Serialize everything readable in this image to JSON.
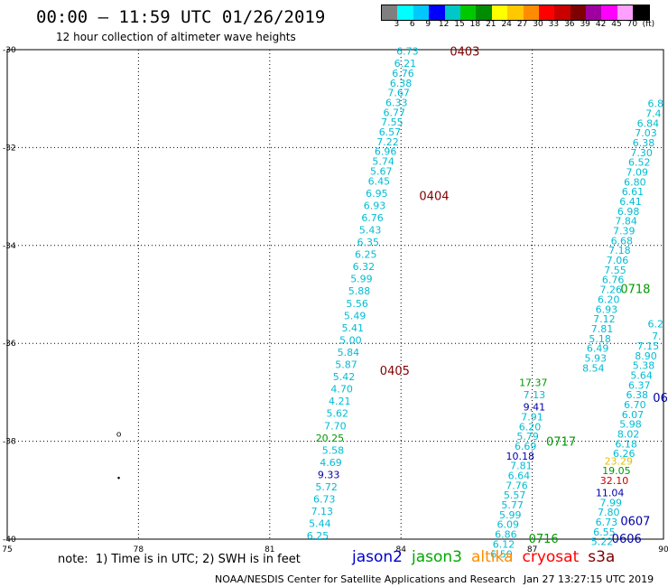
{
  "header": {
    "title": "00:00 – 11:59 UTC 01/26/2019",
    "subtitle": "12 hour collection of altimeter wave heights"
  },
  "colorbar": {
    "unit": "(ft)",
    "labels": [
      "3",
      "6",
      "9",
      "12",
      "15",
      "18",
      "21",
      "24",
      "27",
      "30",
      "33",
      "36",
      "39",
      "42",
      "45",
      "70"
    ],
    "colors": [
      "#7f7f7f",
      "#00ffff",
      "#00c8ff",
      "#0000ff",
      "#00c8c8",
      "#00c800",
      "#008c00",
      "#ffff00",
      "#ffc800",
      "#ff8c00",
      "#ff0000",
      "#c80000",
      "#7f0000",
      "#a000a0",
      "#ff00ff",
      "#ffa0ff",
      "#000000"
    ]
  },
  "map": {
    "lon_range": [
      75,
      90
    ],
    "lat_range": [
      -40,
      -30
    ],
    "lon_ticks": [
      "75",
      "78",
      "81",
      "84",
      "87",
      "90"
    ],
    "lat_ticks": [
      "-30",
      "-32",
      "-34",
      "-36",
      "-38",
      "-40"
    ],
    "lat_tick_values": [
      -30,
      -32,
      -34,
      -36,
      -38,
      -40
    ],
    "lon_tick_values": [
      75,
      78,
      81,
      84,
      87,
      90
    ],
    "island_points": [
      {
        "lon": 77.55,
        "lat": -37.85,
        "symbol": "o"
      },
      {
        "lon": 77.55,
        "lat": -38.75,
        "symbol": "•"
      }
    ]
  },
  "chart_data": {
    "type": "scatter",
    "title": "00:00 – 11:59 UTC 01/26/2019",
    "xlabel": "",
    "ylabel": "",
    "xlim": [
      75,
      90
    ],
    "ylim": [
      -40,
      -30
    ],
    "grid": true,
    "series": [
      {
        "name": "cryosat",
        "color": "#00bcd4",
        "points": [
          {
            "lon": 84.4,
            "lat": -30.03,
            "v": "6.73"
          },
          {
            "lon": 84.35,
            "lat": -30.28,
            "v": "6.21"
          },
          {
            "lon": 84.3,
            "lat": -30.48,
            "v": "6.76"
          },
          {
            "lon": 84.25,
            "lat": -30.68,
            "v": "6.38"
          },
          {
            "lon": 84.2,
            "lat": -30.88,
            "v": "7.67"
          },
          {
            "lon": 84.15,
            "lat": -31.08,
            "v": "6.33"
          },
          {
            "lon": 84.1,
            "lat": -31.28,
            "v": "6.77"
          },
          {
            "lon": 84.05,
            "lat": -31.48,
            "v": "7.55"
          },
          {
            "lon": 84.0,
            "lat": -31.68,
            "v": "6.57"
          },
          {
            "lon": 83.95,
            "lat": -31.88,
            "v": "7.22"
          },
          {
            "lon": 83.9,
            "lat": -32.08,
            "v": "6.96"
          },
          {
            "lon": 83.85,
            "lat": -32.28,
            "v": "5.74"
          },
          {
            "lon": 83.8,
            "lat": -32.48,
            "v": "5.67"
          },
          {
            "lon": 83.75,
            "lat": -32.68,
            "v": "6.45"
          },
          {
            "lon": 83.7,
            "lat": -32.93,
            "v": "6.95"
          },
          {
            "lon": 83.65,
            "lat": -33.18,
            "v": "6.93"
          },
          {
            "lon": 83.6,
            "lat": -33.43,
            "v": "6.76"
          },
          {
            "lon": 83.55,
            "lat": -33.68,
            "v": "5.43"
          },
          {
            "lon": 83.5,
            "lat": -33.93,
            "v": "6.35"
          },
          {
            "lon": 83.45,
            "lat": -34.18,
            "v": "6.25"
          },
          {
            "lon": 83.4,
            "lat": -34.43,
            "v": "6.32"
          },
          {
            "lon": 83.35,
            "lat": -34.68,
            "v": "5.99"
          },
          {
            "lon": 83.3,
            "lat": -34.93,
            "v": "5.88"
          },
          {
            "lon": 83.25,
            "lat": -35.18,
            "v": "5.56"
          },
          {
            "lon": 83.2,
            "lat": -35.43,
            "v": "5.49"
          },
          {
            "lon": 83.15,
            "lat": -35.68,
            "v": "5.41"
          },
          {
            "lon": 83.1,
            "lat": -35.93,
            "v": "5.00"
          },
          {
            "lon": 83.05,
            "lat": -36.18,
            "v": "5.84"
          },
          {
            "lon": 83.0,
            "lat": -36.43,
            "v": "5.87"
          },
          {
            "lon": 82.95,
            "lat": -36.68,
            "v": "5.42"
          },
          {
            "lon": 82.9,
            "lat": -36.93,
            "v": "4.70"
          },
          {
            "lon": 82.85,
            "lat": -37.18,
            "v": "4.21"
          },
          {
            "lon": 82.8,
            "lat": -37.43,
            "v": "5.62"
          },
          {
            "lon": 82.75,
            "lat": -37.68,
            "v": "7.70"
          },
          {
            "lon": 82.7,
            "lat": -38.18,
            "v": "5.58"
          },
          {
            "lon": 82.65,
            "lat": -38.43,
            "v": "4.69"
          },
          {
            "lon": 82.55,
            "lat": -38.93,
            "v": "5.72"
          },
          {
            "lon": 82.5,
            "lat": -39.18,
            "v": "6.73"
          },
          {
            "lon": 82.45,
            "lat": -39.43,
            "v": "7.13"
          },
          {
            "lon": 82.4,
            "lat": -39.68,
            "v": "5.44"
          },
          {
            "lon": 82.35,
            "lat": -39.93,
            "v": "6.25"
          },
          {
            "lon": 90.0,
            "lat": -31.1,
            "v": "6.8"
          },
          {
            "lon": 89.95,
            "lat": -31.3,
            "v": "7.4"
          },
          {
            "lon": 89.9,
            "lat": -31.5,
            "v": "6.84"
          },
          {
            "lon": 89.85,
            "lat": -31.7,
            "v": "7.03"
          },
          {
            "lon": 89.8,
            "lat": -31.9,
            "v": "6.38"
          },
          {
            "lon": 89.75,
            "lat": -32.1,
            "v": "7.30"
          },
          {
            "lon": 89.7,
            "lat": -32.3,
            "v": "6.52"
          },
          {
            "lon": 89.65,
            "lat": -32.5,
            "v": "7.09"
          },
          {
            "lon": 89.6,
            "lat": -32.7,
            "v": "6.80"
          },
          {
            "lon": 89.55,
            "lat": -32.9,
            "v": "6.61"
          },
          {
            "lon": 89.5,
            "lat": -33.1,
            "v": "6.41"
          },
          {
            "lon": 89.45,
            "lat": -33.3,
            "v": "6.98"
          },
          {
            "lon": 89.4,
            "lat": -33.5,
            "v": "7.84"
          },
          {
            "lon": 89.35,
            "lat": -33.7,
            "v": "7.39"
          },
          {
            "lon": 89.3,
            "lat": -33.9,
            "v": "6.68"
          },
          {
            "lon": 89.25,
            "lat": -34.1,
            "v": "7.18"
          },
          {
            "lon": 89.2,
            "lat": -34.3,
            "v": "7.06"
          },
          {
            "lon": 89.15,
            "lat": -34.5,
            "v": "7.55"
          },
          {
            "lon": 89.1,
            "lat": -34.7,
            "v": "6.76"
          },
          {
            "lon": 89.05,
            "lat": -34.9,
            "v": "7.26"
          },
          {
            "lon": 89.0,
            "lat": -35.1,
            "v": "6.20"
          },
          {
            "lon": 88.95,
            "lat": -35.3,
            "v": "6.93"
          },
          {
            "lon": 88.9,
            "lat": -35.5,
            "v": "7.12"
          },
          {
            "lon": 88.85,
            "lat": -35.7,
            "v": "7.81"
          },
          {
            "lon": 88.8,
            "lat": -35.9,
            "v": "5.18"
          },
          {
            "lon": 88.75,
            "lat": -36.1,
            "v": "6.49"
          },
          {
            "lon": 88.7,
            "lat": -36.3,
            "v": "5.93"
          },
          {
            "lon": 88.65,
            "lat": -36.5,
            "v": "8.54"
          },
          {
            "lon": 87.3,
            "lat": -37.05,
            "v": "7.13"
          },
          {
            "lon": 87.25,
            "lat": -37.5,
            "v": "7.91"
          },
          {
            "lon": 87.2,
            "lat": -37.7,
            "v": "6.20"
          },
          {
            "lon": 87.15,
            "lat": -37.9,
            "v": "5.79"
          },
          {
            "lon": 87.1,
            "lat": -38.1,
            "v": "6.69"
          },
          {
            "lon": 87.0,
            "lat": -38.5,
            "v": "7.81"
          },
          {
            "lon": 86.95,
            "lat": -38.7,
            "v": "6.64"
          },
          {
            "lon": 86.9,
            "lat": -38.9,
            "v": "7.76"
          },
          {
            "lon": 86.85,
            "lat": -39.1,
            "v": "5.57"
          },
          {
            "lon": 86.8,
            "lat": -39.3,
            "v": "5.77"
          },
          {
            "lon": 86.75,
            "lat": -39.5,
            "v": "5.99"
          },
          {
            "lon": 86.7,
            "lat": -39.7,
            "v": "6.09"
          },
          {
            "lon": 86.65,
            "lat": -39.9,
            "v": "6.86"
          },
          {
            "lon": 86.6,
            "lat": -40.1,
            "v": "6.12"
          },
          {
            "lon": 86.55,
            "lat": -40.3,
            "v": "6.50"
          },
          {
            "lon": 90.0,
            "lat": -35.6,
            "v": "6.2"
          },
          {
            "lon": 89.95,
            "lat": -35.85,
            "v": "7."
          },
          {
            "lon": 89.9,
            "lat": -36.05,
            "v": "7.15"
          },
          {
            "lon": 89.85,
            "lat": -36.25,
            "v": "8.90"
          },
          {
            "lon": 89.8,
            "lat": -36.45,
            "v": "5.38"
          },
          {
            "lon": 89.75,
            "lat": -36.65,
            "v": "5.64"
          },
          {
            "lon": 89.7,
            "lat": -36.85,
            "v": "6.37"
          },
          {
            "lon": 89.65,
            "lat": -37.05,
            "v": "6.38"
          },
          {
            "lon": 89.6,
            "lat": -37.25,
            "v": "6.70"
          },
          {
            "lon": 89.55,
            "lat": -37.45,
            "v": "6.07"
          },
          {
            "lon": 89.5,
            "lat": -37.65,
            "v": "5.98"
          },
          {
            "lon": 89.45,
            "lat": -37.85,
            "v": "8.02"
          },
          {
            "lon": 89.4,
            "lat": -38.05,
            "v": "6.18"
          },
          {
            "lon": 89.35,
            "lat": -38.25,
            "v": "6.26"
          },
          {
            "lon": 89.05,
            "lat": -39.25,
            "v": "7.99"
          },
          {
            "lon": 89.0,
            "lat": -39.45,
            "v": "7.80"
          },
          {
            "lon": 88.95,
            "lat": -39.65,
            "v": "6.73"
          },
          {
            "lon": 88.9,
            "lat": -39.85,
            "v": "6.55"
          },
          {
            "lon": 88.85,
            "lat": -40.05,
            "v": "5.22"
          }
        ]
      },
      {
        "name": "jason3",
        "color": "#009900",
        "points": [
          {
            "lon": 82.7,
            "lat": -37.93,
            "v": "20.25"
          },
          {
            "lon": 87.35,
            "lat": -36.8,
            "v": "17.37"
          },
          {
            "lon": 89.25,
            "lat": -38.6,
            "v": "19.05"
          }
        ]
      },
      {
        "name": "jason2",
        "color": "#0000aa",
        "points": [
          {
            "lon": 82.6,
            "lat": -38.68,
            "v": "9.33"
          },
          {
            "lon": 87.3,
            "lat": -37.3,
            "v": "9.41"
          },
          {
            "lon": 87.05,
            "lat": -38.3,
            "v": "10.18"
          },
          {
            "lon": 89.1,
            "lat": -39.05,
            "v": "11.04"
          }
        ]
      },
      {
        "name": "altika",
        "color": "#e8c000",
        "points": [
          {
            "lon": 89.3,
            "lat": -38.4,
            "v": "23.29"
          }
        ]
      },
      {
        "name": "s3a",
        "color": "#cc0000",
        "points": [
          {
            "lon": 89.2,
            "lat": -38.8,
            "v": "32.10"
          }
        ]
      }
    ],
    "time_labels": [
      {
        "lon": 85.8,
        "lat": -30.03,
        "text": "0403",
        "color": "#7f0000"
      },
      {
        "lon": 85.1,
        "lat": -32.98,
        "text": "0404",
        "color": "#7f0000"
      },
      {
        "lon": 84.2,
        "lat": -36.55,
        "text": "0405",
        "color": "#7f0000"
      },
      {
        "lon": 89.7,
        "lat": -34.88,
        "text": "0718",
        "color": "#009900"
      },
      {
        "lon": 88.0,
        "lat": -38.0,
        "text": "0717",
        "color": "#009900"
      },
      {
        "lon": 87.6,
        "lat": -39.98,
        "text": "0716",
        "color": "#009900"
      },
      {
        "lon": 90.1,
        "lat": -37.1,
        "text": "06",
        "color": "#0000aa"
      },
      {
        "lon": 89.7,
        "lat": -39.62,
        "text": "0607",
        "color": "#0000aa"
      },
      {
        "lon": 89.5,
        "lat": -39.98,
        "text": "0606",
        "color": "#0000aa"
      }
    ]
  },
  "footer": {
    "note": "note:  1) Time is in UTC; 2) SWH is in feet",
    "legend": [
      {
        "label": "jason2",
        "color": "#0000cc"
      },
      {
        "label": "jason3",
        "color": "#00aa00"
      },
      {
        "label": "altika",
        "color": "#ff8c00"
      },
      {
        "label": "cryosat",
        "color": "#ff0000"
      },
      {
        "label": "s3a",
        "color": "#7f0000"
      }
    ],
    "credit": "NOAA/NESDIS Center for Satellite Applications and Research",
    "timestamp": "Jan 27 13:27:15 UTC 2019"
  }
}
